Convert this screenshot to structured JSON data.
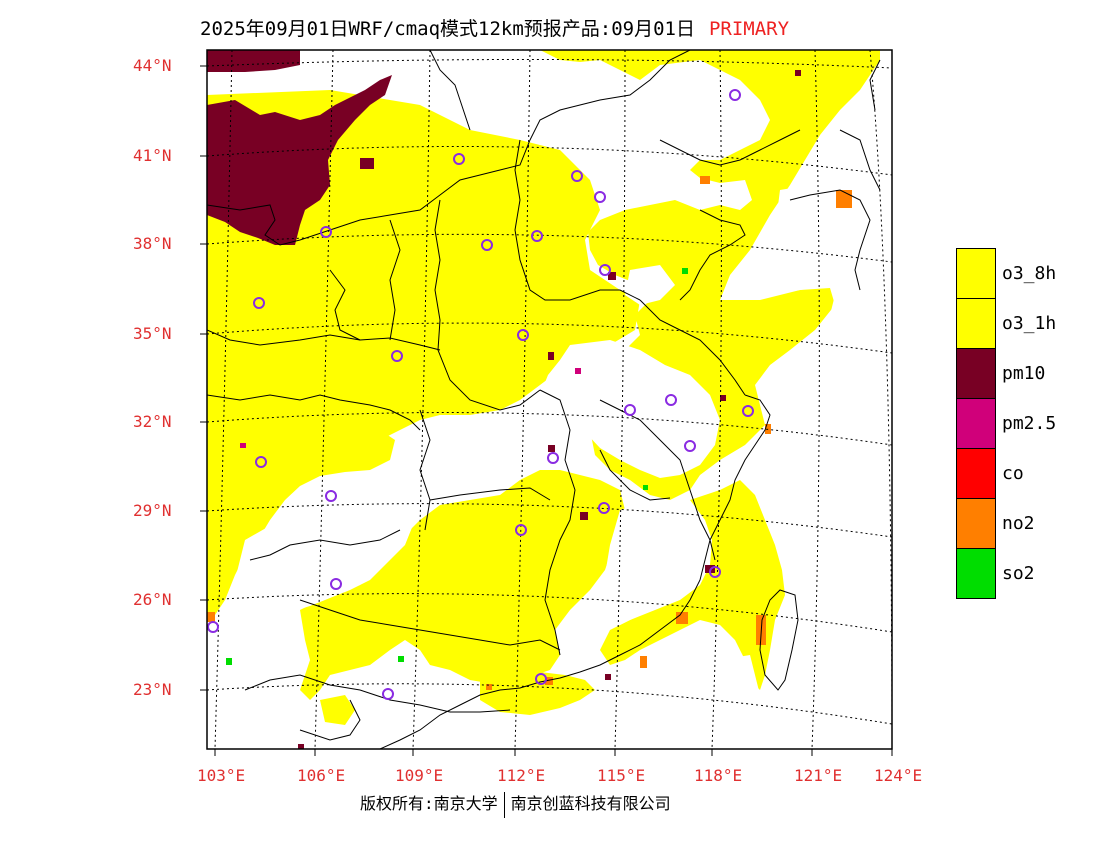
{
  "title": {
    "main": "2025年09月01日WRF/cmaq模式12km预报产品:09月01日",
    "tag": "PRIMARY"
  },
  "map": {
    "lat_labels": [
      "44°N",
      "41°N",
      "38°N",
      "35°N",
      "32°N",
      "29°N",
      "26°N",
      "23°N"
    ],
    "lon_labels": [
      "103°E",
      "106°E",
      "109°E",
      "112°E",
      "115°E",
      "118°E",
      "121°E",
      "124°E"
    ],
    "colors": {
      "o3": "#ffff00",
      "pm10": "#780024",
      "pm25": "#d0007a",
      "co": "#ff0000",
      "no2": "#ff7f00",
      "so2": "#00dd00",
      "station_marker": "#8a2be2",
      "background": "#ffffff"
    }
  },
  "legend": [
    {
      "label": "o3_8h",
      "color": "#ffff00"
    },
    {
      "label": "o3_1h",
      "color": "#ffff00"
    },
    {
      "label": "pm10",
      "color": "#780024"
    },
    {
      "label": "pm2.5",
      "color": "#d0007a"
    },
    {
      "label": "co",
      "color": "#ff0000"
    },
    {
      "label": "no2",
      "color": "#ff7f00"
    },
    {
      "label": "so2",
      "color": "#00dd00"
    }
  ],
  "footer": {
    "copyright_left": "版权所有:南京大学",
    "copyright_right": "南京创蓝科技有限公司"
  }
}
